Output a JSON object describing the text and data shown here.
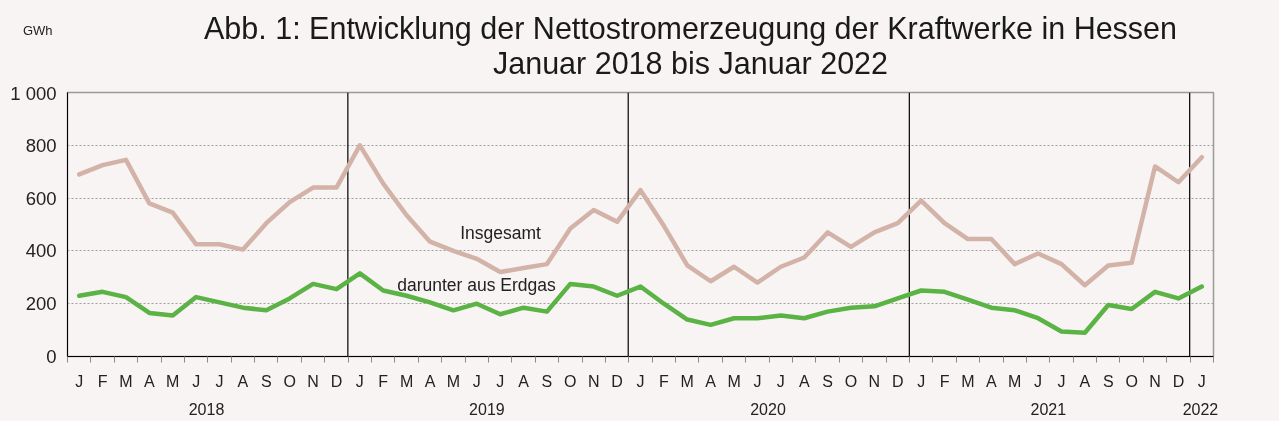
{
  "chart_data": {
    "type": "line",
    "title": "Abb. 1: Entwicklung der Nettostromerzeugung der Kraftwerke in Hessen",
    "subtitle": "Januar 2018 bis Januar 2022",
    "ylabel": "GWh",
    "categories": [
      "J",
      "F",
      "M",
      "A",
      "M",
      "J",
      "J",
      "A",
      "S",
      "O",
      "N",
      "D",
      "J",
      "F",
      "M",
      "A",
      "M",
      "J",
      "J",
      "A",
      "S",
      "O",
      "N",
      "D",
      "J",
      "F",
      "M",
      "A",
      "M",
      "J",
      "J",
      "A",
      "S",
      "O",
      "N",
      "D",
      "J",
      "F",
      "M",
      "A",
      "M",
      "J",
      "J",
      "A",
      "S",
      "O",
      "N",
      "D",
      "J"
    ],
    "series": [
      {
        "name": "Insgesamt",
        "color": "#d3b2a8",
        "values": [
          690,
          725,
          745,
          580,
          545,
          425,
          425,
          405,
          505,
          585,
          640,
          640,
          800,
          655,
          535,
          435,
          400,
          370,
          320,
          335,
          350,
          485,
          555,
          510,
          630,
          495,
          345,
          285,
          340,
          280,
          340,
          375,
          470,
          415,
          470,
          505,
          590,
          505,
          445,
          445,
          350,
          390,
          350,
          270,
          345,
          355,
          720,
          660,
          755
        ]
      },
      {
        "name": "darunter aus Erdgas",
        "color": "#5cb345",
        "values": [
          230,
          245,
          225,
          165,
          155,
          225,
          205,
          185,
          175,
          220,
          275,
          255,
          315,
          250,
          230,
          205,
          175,
          200,
          160,
          185,
          170,
          275,
          265,
          230,
          265,
          200,
          140,
          120,
          145,
          145,
          155,
          145,
          170,
          185,
          190,
          220,
          250,
          245,
          215,
          185,
          175,
          145,
          95,
          90,
          195,
          180,
          245,
          220,
          265
        ]
      }
    ],
    "x2lim": [
      "2018-01-01",
      "2022-02-01"
    ],
    "x2ticks": [
      {
        "value": "2018-07-01",
        "label": "2018"
      },
      {
        "value": "2019-07-01",
        "label": "2019"
      },
      {
        "value": "2020-07-01",
        "label": "2020"
      },
      {
        "value": "2021-07-01",
        "label": "2021"
      },
      {
        "value": "2022-01-15",
        "label": "2022"
      }
    ],
    "ylim": [
      0,
      1000
    ],
    "yticks": [
      0,
      200,
      400,
      600,
      800,
      {
        "value": 1000,
        "label": "1 000"
      }
    ],
    "grid": "y",
    "line_style": "solid"
  }
}
